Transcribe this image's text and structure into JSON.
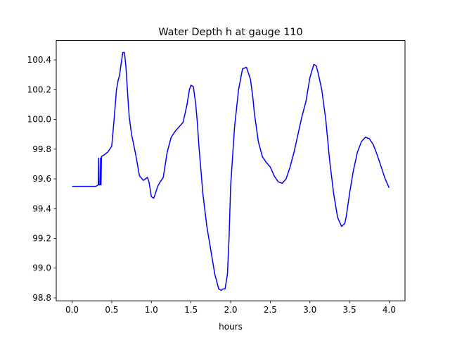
{
  "chart_data": {
    "type": "line",
    "title": "Water Depth h at gauge 110",
    "xlabel": "hours",
    "ylabel": "",
    "xlim": [
      -0.2,
      4.2
    ],
    "ylim": [
      98.78,
      100.53
    ],
    "xticks": [
      0.0,
      0.5,
      1.0,
      1.5,
      2.0,
      2.5,
      3.0,
      3.5,
      4.0
    ],
    "xtick_labels": [
      "0.0",
      "0.5",
      "1.0",
      "1.5",
      "2.0",
      "2.5",
      "3.0",
      "3.5",
      "4.0"
    ],
    "yticks": [
      98.8,
      99.0,
      99.2,
      99.4,
      99.6,
      99.8,
      100.0,
      100.2,
      100.4
    ],
    "ytick_labels": [
      "98.8",
      "99.0",
      "99.2",
      "99.4",
      "99.6",
      "99.8",
      "100.0",
      "100.2",
      "100.4"
    ],
    "grid": false,
    "series": [
      {
        "color": "#0000ff",
        "x": [
          0.0,
          0.1,
          0.2,
          0.3,
          0.33,
          0.335,
          0.34,
          0.345,
          0.35,
          0.355,
          0.36,
          0.365,
          0.37,
          0.4,
          0.45,
          0.5,
          0.53,
          0.56,
          0.58,
          0.6,
          0.62,
          0.64,
          0.66,
          0.68,
          0.7,
          0.72,
          0.75,
          0.8,
          0.85,
          0.9,
          0.95,
          0.97,
          1.0,
          1.03,
          1.05,
          1.08,
          1.1,
          1.15,
          1.2,
          1.25,
          1.3,
          1.35,
          1.4,
          1.45,
          1.48,
          1.5,
          1.53,
          1.56,
          1.58,
          1.6,
          1.65,
          1.7,
          1.75,
          1.8,
          1.85,
          1.88,
          1.9,
          1.93,
          1.96,
          1.98,
          2.0,
          2.05,
          2.1,
          2.15,
          2.2,
          2.25,
          2.28,
          2.3,
          2.35,
          2.4,
          2.45,
          2.5,
          2.55,
          2.6,
          2.65,
          2.7,
          2.75,
          2.8,
          2.85,
          2.9,
          2.95,
          3.0,
          3.05,
          3.08,
          3.1,
          3.15,
          3.2,
          3.25,
          3.3,
          3.35,
          3.4,
          3.44,
          3.46,
          3.5,
          3.55,
          3.6,
          3.65,
          3.7,
          3.75,
          3.8,
          3.85,
          3.9,
          3.95,
          4.0
        ],
        "y": [
          99.55,
          99.55,
          99.55,
          99.55,
          99.56,
          99.74,
          99.56,
          99.56,
          99.56,
          99.56,
          99.74,
          99.56,
          99.75,
          99.76,
          99.78,
          99.82,
          100.0,
          100.2,
          100.26,
          100.3,
          100.38,
          100.45,
          100.45,
          100.35,
          100.18,
          100.02,
          99.9,
          99.77,
          99.62,
          99.59,
          99.61,
          99.58,
          99.48,
          99.47,
          99.5,
          99.55,
          99.57,
          99.61,
          99.78,
          99.88,
          99.92,
          99.95,
          99.98,
          100.1,
          100.2,
          100.23,
          100.22,
          100.1,
          99.98,
          99.82,
          99.5,
          99.28,
          99.12,
          98.96,
          98.86,
          98.85,
          98.86,
          98.86,
          98.96,
          99.2,
          99.55,
          99.95,
          100.2,
          100.34,
          100.35,
          100.27,
          100.15,
          100.04,
          99.85,
          99.75,
          99.71,
          99.68,
          99.62,
          99.58,
          99.57,
          99.6,
          99.68,
          99.78,
          99.9,
          100.02,
          100.12,
          100.28,
          100.37,
          100.36,
          100.32,
          100.2,
          100.0,
          99.72,
          99.5,
          99.34,
          99.28,
          99.3,
          99.35,
          99.5,
          99.66,
          99.78,
          99.85,
          99.88,
          99.87,
          99.83,
          99.76,
          99.68,
          99.6,
          99.54
        ]
      }
    ]
  }
}
